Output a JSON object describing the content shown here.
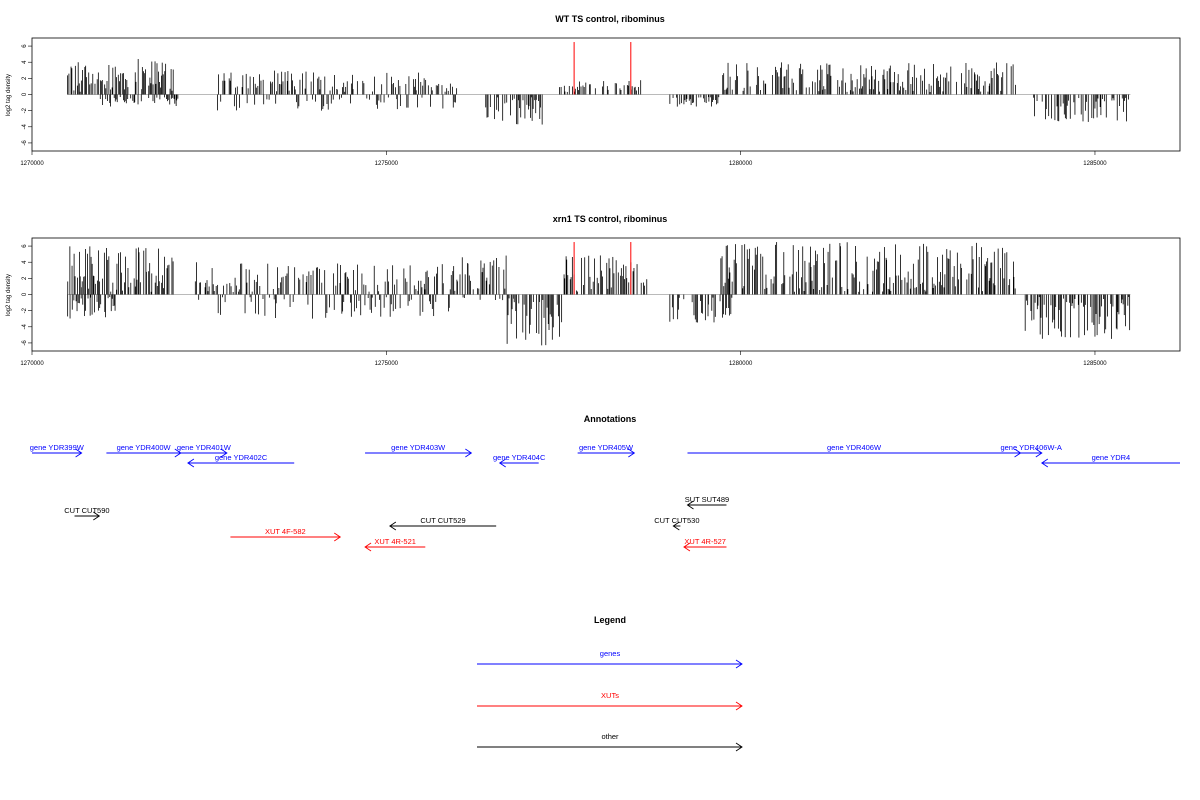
{
  "chart_data": [
    {
      "type": "bar",
      "title": "WT TS control, ribominus",
      "ylabel": "log2 tag density",
      "xlim": [
        1270000,
        1286200
      ],
      "ylim": [
        -7,
        7
      ],
      "yticks": [
        "6",
        "4",
        "2",
        "0",
        "-2",
        "-4",
        "-6"
      ],
      "xticks": [
        "1270000",
        "1275000",
        "1280000",
        "1285000"
      ],
      "grid": false,
      "regions": [
        {
          "start": 1270500,
          "end": 1272000,
          "min": 0,
          "max": 4.5
        },
        {
          "start": 1270900,
          "end": 1272100,
          "min": -1.5,
          "max": 0
        },
        {
          "start": 1272600,
          "end": 1276000,
          "min": -2,
          "max": 3
        },
        {
          "start": 1276400,
          "end": 1277250,
          "min": -4,
          "max": 0
        },
        {
          "start": 1277400,
          "end": 1278600,
          "min": 0,
          "max": 1.8
        },
        {
          "start": 1279000,
          "end": 1279700,
          "min": -1.5,
          "max": 0
        },
        {
          "start": 1279700,
          "end": 1283900,
          "min": 0,
          "max": 4
        },
        {
          "start": 1284100,
          "end": 1285500,
          "min": -3.5,
          "max": 0
        }
      ],
      "highlights": [
        {
          "x": 1277650,
          "value": 6.5,
          "color": "#ff0000"
        },
        {
          "x": 1278450,
          "value": 6.5,
          "color": "#ff0000"
        }
      ]
    },
    {
      "type": "bar",
      "title": "xrn1 TS control, ribominus",
      "ylabel": "log2 tag density",
      "xlim": [
        1270000,
        1286200
      ],
      "ylim": [
        -7,
        7
      ],
      "yticks": [
        "6",
        "4",
        "2",
        "0",
        "-2",
        "-4",
        "-6"
      ],
      "xticks": [
        "1270000",
        "1275000",
        "1280000",
        "1285000"
      ],
      "grid": false,
      "regions": [
        {
          "start": 1270500,
          "end": 1272000,
          "min": 0,
          "max": 6
        },
        {
          "start": 1270500,
          "end": 1271200,
          "min": -3,
          "max": 0
        },
        {
          "start": 1272300,
          "end": 1275900,
          "min": -3,
          "max": 4
        },
        {
          "start": 1275900,
          "end": 1276700,
          "min": -1,
          "max": 5
        },
        {
          "start": 1276700,
          "end": 1277500,
          "min": -6.5,
          "max": 0
        },
        {
          "start": 1277500,
          "end": 1278700,
          "min": 0,
          "max": 5
        },
        {
          "start": 1279000,
          "end": 1279900,
          "min": -3.5,
          "max": 0
        },
        {
          "start": 1279700,
          "end": 1283900,
          "min": 0,
          "max": 6.5
        },
        {
          "start": 1284000,
          "end": 1285500,
          "min": -5.5,
          "max": 0
        }
      ],
      "highlights": [
        {
          "x": 1277650,
          "value": 6.5,
          "color": "#ff0000"
        },
        {
          "x": 1278450,
          "value": 6.5,
          "color": "#ff0000"
        }
      ]
    }
  ],
  "annotations": {
    "title": "Annotations",
    "items": [
      {
        "label": "gene YDR399W",
        "start": 1270000,
        "end": 1270700,
        "strand": "+",
        "row": 0,
        "color": "#0000ff"
      },
      {
        "label": "gene YDR400W",
        "start": 1271050,
        "end": 1272100,
        "strand": "+",
        "row": 0,
        "color": "#0000ff"
      },
      {
        "label": "gene YDR401W",
        "start": 1272100,
        "end": 1272750,
        "strand": "+",
        "row": 0,
        "color": "#0000ff"
      },
      {
        "label": "gene YDR402C",
        "start": 1272200,
        "end": 1273700,
        "strand": "-",
        "row": 1,
        "color": "#0000ff"
      },
      {
        "label": "gene YDR403W",
        "start": 1274700,
        "end": 1276200,
        "strand": "+",
        "row": 0,
        "color": "#0000ff"
      },
      {
        "label": "gene YDR404C",
        "start": 1276600,
        "end": 1277150,
        "strand": "-",
        "row": 1,
        "color": "#0000ff"
      },
      {
        "label": "gene YDR405W",
        "start": 1277700,
        "end": 1278500,
        "strand": "+",
        "row": 0,
        "color": "#0000ff"
      },
      {
        "label": "gene YDR406W",
        "start": 1279250,
        "end": 1283950,
        "strand": "+",
        "row": 0,
        "color": "#0000ff"
      },
      {
        "label": "gene YDR406W-A",
        "start": 1283950,
        "end": 1284250,
        "strand": "+",
        "row": 0,
        "color": "#0000ff"
      },
      {
        "label": "gene YDR4",
        "start": 1284250,
        "end": 1286200,
        "strand": "-",
        "row": 1,
        "color": "#0000ff"
      },
      {
        "label": "SUT SUT489",
        "start": 1279250,
        "end": 1279800,
        "strand": "-",
        "row": 3,
        "color": "#000000"
      },
      {
        "label": "CUT CUT590",
        "start": 1270600,
        "end": 1270950,
        "strand": "+",
        "row": 4,
        "color": "#000000"
      },
      {
        "label": "CUT CUT529",
        "start": 1275050,
        "end": 1276550,
        "strand": "-",
        "row": 5,
        "color": "#000000"
      },
      {
        "label": "CUT CUT530",
        "start": 1279050,
        "end": 1279150,
        "strand": "-",
        "row": 5,
        "color": "#000000"
      },
      {
        "label": "XUT 4F-582",
        "start": 1272800,
        "end": 1274350,
        "strand": "+",
        "row": 6,
        "color": "#ff0000"
      },
      {
        "label": "XUT 4R-521",
        "start": 1274700,
        "end": 1275550,
        "strand": "-",
        "row": 7,
        "color": "#ff0000"
      },
      {
        "label": "XUT 4R-527",
        "start": 1279200,
        "end": 1279800,
        "strand": "-",
        "row": 7,
        "color": "#ff0000"
      }
    ]
  },
  "legend": {
    "title": "Legend",
    "items": [
      {
        "label": "genes",
        "color": "#0000ff"
      },
      {
        "label": "XUTs",
        "color": "#ff0000"
      },
      {
        "label": "other",
        "color": "#000000"
      }
    ]
  }
}
